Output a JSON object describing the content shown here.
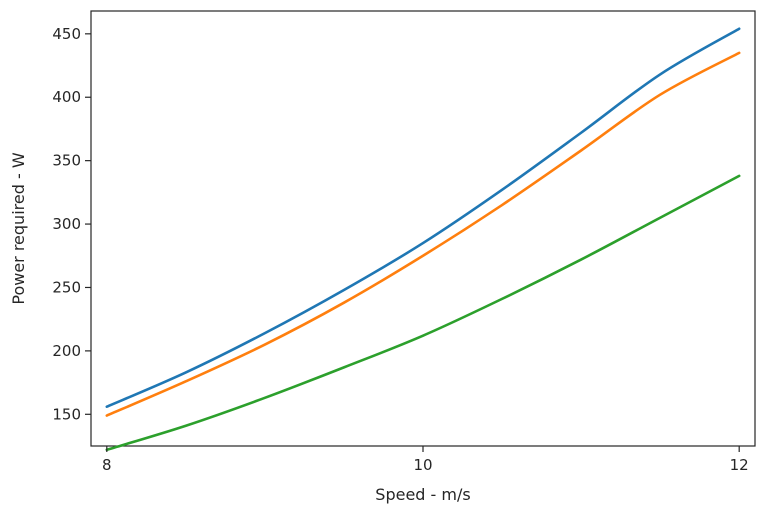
{
  "chart_data": {
    "type": "line",
    "title": "",
    "xlabel": "Speed - m/s",
    "ylabel": "Power required - W",
    "xlim": [
      7.9,
      12.1
    ],
    "ylim": [
      125,
      468
    ],
    "xticks": [
      8,
      10,
      12
    ],
    "yticks": [
      150,
      200,
      250,
      300,
      350,
      400,
      450
    ],
    "grid": false,
    "legend": "none",
    "x": [
      8,
      8.5,
      9,
      9.5,
      10,
      10.5,
      11,
      11.5,
      12
    ],
    "series": [
      {
        "color": "#1f77b4",
        "values": [
          156,
          183,
          214,
          248,
          285,
          327,
          372,
          418,
          454
        ]
      },
      {
        "color": "#ff7f0e",
        "values": [
          149,
          176,
          205,
          238,
          275,
          315,
          358,
          402,
          435
        ]
      },
      {
        "color": "#2ca02c",
        "values": [
          122,
          141,
          163,
          187,
          212,
          241,
          272,
          305,
          338
        ]
      }
    ]
  }
}
